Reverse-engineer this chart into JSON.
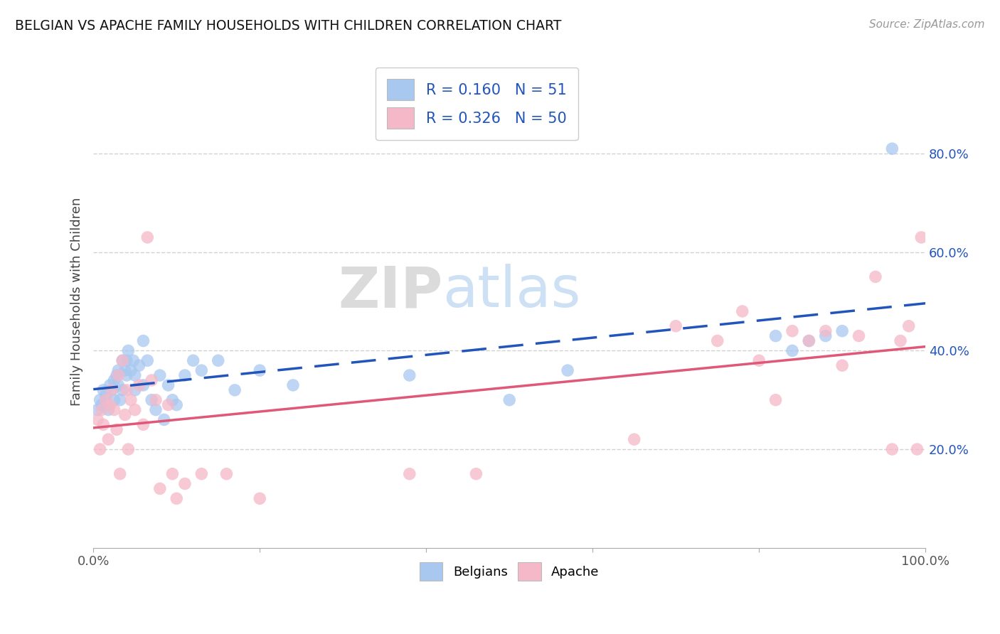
{
  "title": "BELGIAN VS APACHE FAMILY HOUSEHOLDS WITH CHILDREN CORRELATION CHART",
  "source": "Source: ZipAtlas.com",
  "ylabel": "Family Households with Children",
  "legend_bottom": [
    "Belgians",
    "Apache"
  ],
  "watermark_left": "ZIP",
  "watermark_right": "atlas",
  "blue_R": "R = 0.160",
  "blue_N": "N = 51",
  "pink_R": "R = 0.326",
  "pink_N": "N = 50",
  "blue_color": "#a8c8f0",
  "pink_color": "#f5b8c8",
  "blue_line_color": "#2255bb",
  "pink_line_color": "#e05878",
  "legend_text_color": "#2255bb",
  "xlim": [
    0,
    1.0
  ],
  "ylim": [
    0,
    1.0
  ],
  "xtick_positions": [
    0.0,
    0.2,
    0.4,
    0.6,
    0.8,
    1.0
  ],
  "xtick_labels": [
    "0.0%",
    "",
    "",
    "",
    "",
    "100.0%"
  ],
  "ytick_positions": [
    0.2,
    0.4,
    0.6,
    0.8
  ],
  "ytick_labels": [
    "20.0%",
    "40.0%",
    "60.0%",
    "80.0%"
  ],
  "blue_scatter_x": [
    0.005,
    0.008,
    0.01,
    0.012,
    0.015,
    0.018,
    0.02,
    0.022,
    0.025,
    0.025,
    0.028,
    0.03,
    0.03,
    0.032,
    0.035,
    0.035,
    0.038,
    0.04,
    0.04,
    0.042,
    0.045,
    0.048,
    0.05,
    0.05,
    0.055,
    0.06,
    0.06,
    0.065,
    0.07,
    0.075,
    0.08,
    0.085,
    0.09,
    0.095,
    0.1,
    0.11,
    0.12,
    0.13,
    0.15,
    0.17,
    0.2,
    0.24,
    0.38,
    0.5,
    0.57,
    0.82,
    0.84,
    0.86,
    0.88,
    0.9,
    0.96
  ],
  "blue_scatter_y": [
    0.28,
    0.3,
    0.29,
    0.32,
    0.31,
    0.28,
    0.33,
    0.32,
    0.34,
    0.3,
    0.35,
    0.33,
    0.36,
    0.3,
    0.38,
    0.32,
    0.36,
    0.35,
    0.38,
    0.4,
    0.36,
    0.38,
    0.32,
    0.35,
    0.37,
    0.42,
    0.33,
    0.38,
    0.3,
    0.28,
    0.35,
    0.26,
    0.33,
    0.3,
    0.29,
    0.35,
    0.38,
    0.36,
    0.38,
    0.32,
    0.36,
    0.33,
    0.35,
    0.3,
    0.36,
    0.43,
    0.4,
    0.42,
    0.43,
    0.44,
    0.81
  ],
  "pink_scatter_x": [
    0.005,
    0.008,
    0.01,
    0.012,
    0.015,
    0.018,
    0.02,
    0.022,
    0.025,
    0.028,
    0.03,
    0.032,
    0.035,
    0.038,
    0.04,
    0.042,
    0.045,
    0.05,
    0.055,
    0.06,
    0.065,
    0.07,
    0.075,
    0.08,
    0.09,
    0.095,
    0.1,
    0.11,
    0.13,
    0.16,
    0.2,
    0.38,
    0.46,
    0.65,
    0.7,
    0.75,
    0.78,
    0.8,
    0.82,
    0.84,
    0.86,
    0.88,
    0.9,
    0.92,
    0.94,
    0.96,
    0.97,
    0.98,
    0.99,
    0.995
  ],
  "pink_scatter_y": [
    0.26,
    0.2,
    0.28,
    0.25,
    0.3,
    0.22,
    0.29,
    0.32,
    0.28,
    0.24,
    0.35,
    0.15,
    0.38,
    0.27,
    0.32,
    0.2,
    0.3,
    0.28,
    0.33,
    0.25,
    0.63,
    0.34,
    0.3,
    0.12,
    0.29,
    0.15,
    0.1,
    0.13,
    0.15,
    0.15,
    0.1,
    0.15,
    0.15,
    0.22,
    0.45,
    0.42,
    0.48,
    0.38,
    0.3,
    0.44,
    0.42,
    0.44,
    0.37,
    0.43,
    0.55,
    0.2,
    0.42,
    0.45,
    0.2,
    0.63
  ]
}
